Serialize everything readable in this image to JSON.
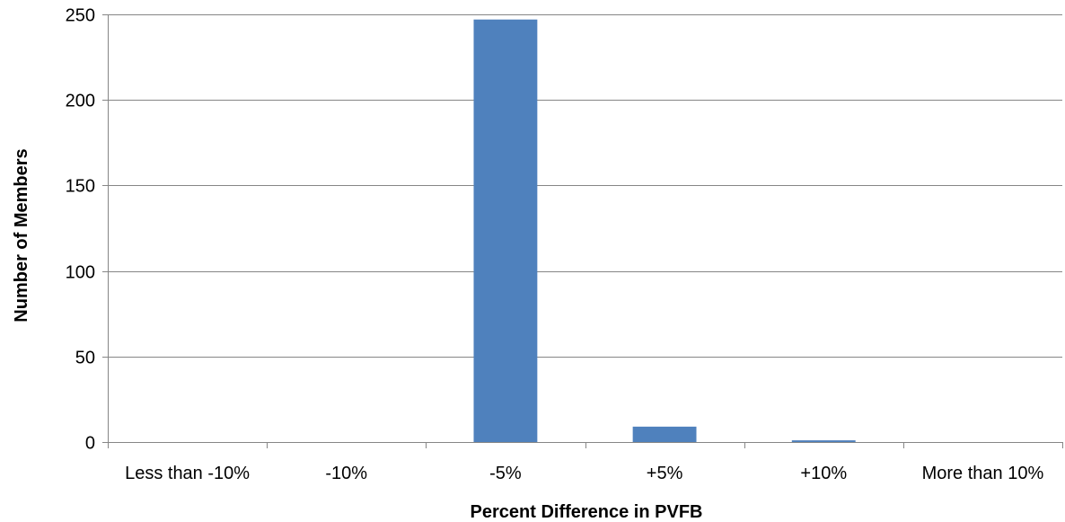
{
  "chart_data": {
    "type": "bar",
    "title": "",
    "xlabel": "Percent Difference in PVFB",
    "ylabel": "Number of Members",
    "categories": [
      "Less than -10%",
      "-10%",
      "-5%",
      "+5%",
      "+10%",
      "More than 10%"
    ],
    "values": [
      0,
      0,
      247,
      9,
      1,
      0
    ],
    "ylim": [
      0,
      250
    ],
    "yticks": [
      0,
      50,
      100,
      150,
      200,
      250
    ],
    "grid": true,
    "legend": "none",
    "bar_color": "#4F81BD"
  }
}
